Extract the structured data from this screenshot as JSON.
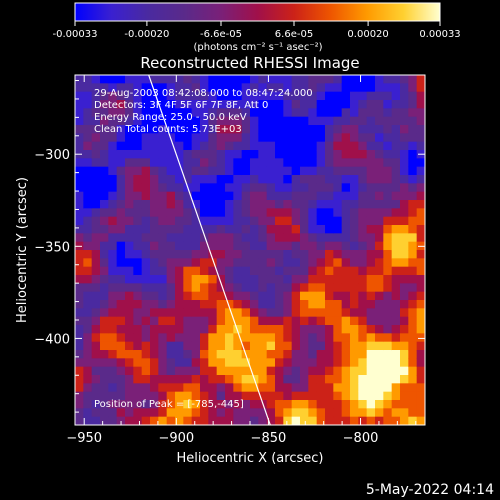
{
  "colorbar": {
    "ticks": [
      "-0.00033",
      "-0.00020",
      "-6.6e-05",
      "6.6e-05",
      "0.00020",
      "0.00033"
    ],
    "range": [
      -0.00033,
      0.00033
    ],
    "unit_label": "(photons cm⁻² s⁻¹ asec⁻²)"
  },
  "chart_data": {
    "type": "heatmap",
    "title": "Reconstructed RHESSI Image",
    "xlabel": "Heliocentric X (arcsec)",
    "ylabel": "Heliocentric Y (arcsec)",
    "xlim": [
      -955,
      -765
    ],
    "ylim": [
      -447,
      -257
    ],
    "x_ticks": [
      -950,
      -900,
      -850,
      -800
    ],
    "x_tick_labels": [
      "−950",
      "−900",
      "−850",
      "−800"
    ],
    "y_ticks": [
      -300,
      -350,
      -400
    ],
    "y_tick_labels": [
      "−300",
      "−350",
      "−400"
    ],
    "annotations": [
      "29-Aug-2003 08:42:08.000 to 08:47:24.000",
      "Detectors: 3F 4F 5F 6F 7F 8F, Att 0",
      "Energy Range: 25.0 - 50.0 keV",
      "Clean     Total counts: 5.73E+03",
      "Position of Peak = [-785,-445]"
    ],
    "limb_line": [
      [
        -915,
        -257
      ],
      [
        -849,
        -447
      ]
    ],
    "colormap": [
      "#0000ff",
      "#3a20d0",
      "#4a2aa0",
      "#5a2a8a",
      "#7a2078",
      "#a0104a",
      "#cc2218",
      "#ee5500",
      "#ff9a00",
      "#ffd030",
      "#ffffd0"
    ]
  },
  "footer": {
    "timestamp": "5-May-2022 04:14"
  }
}
